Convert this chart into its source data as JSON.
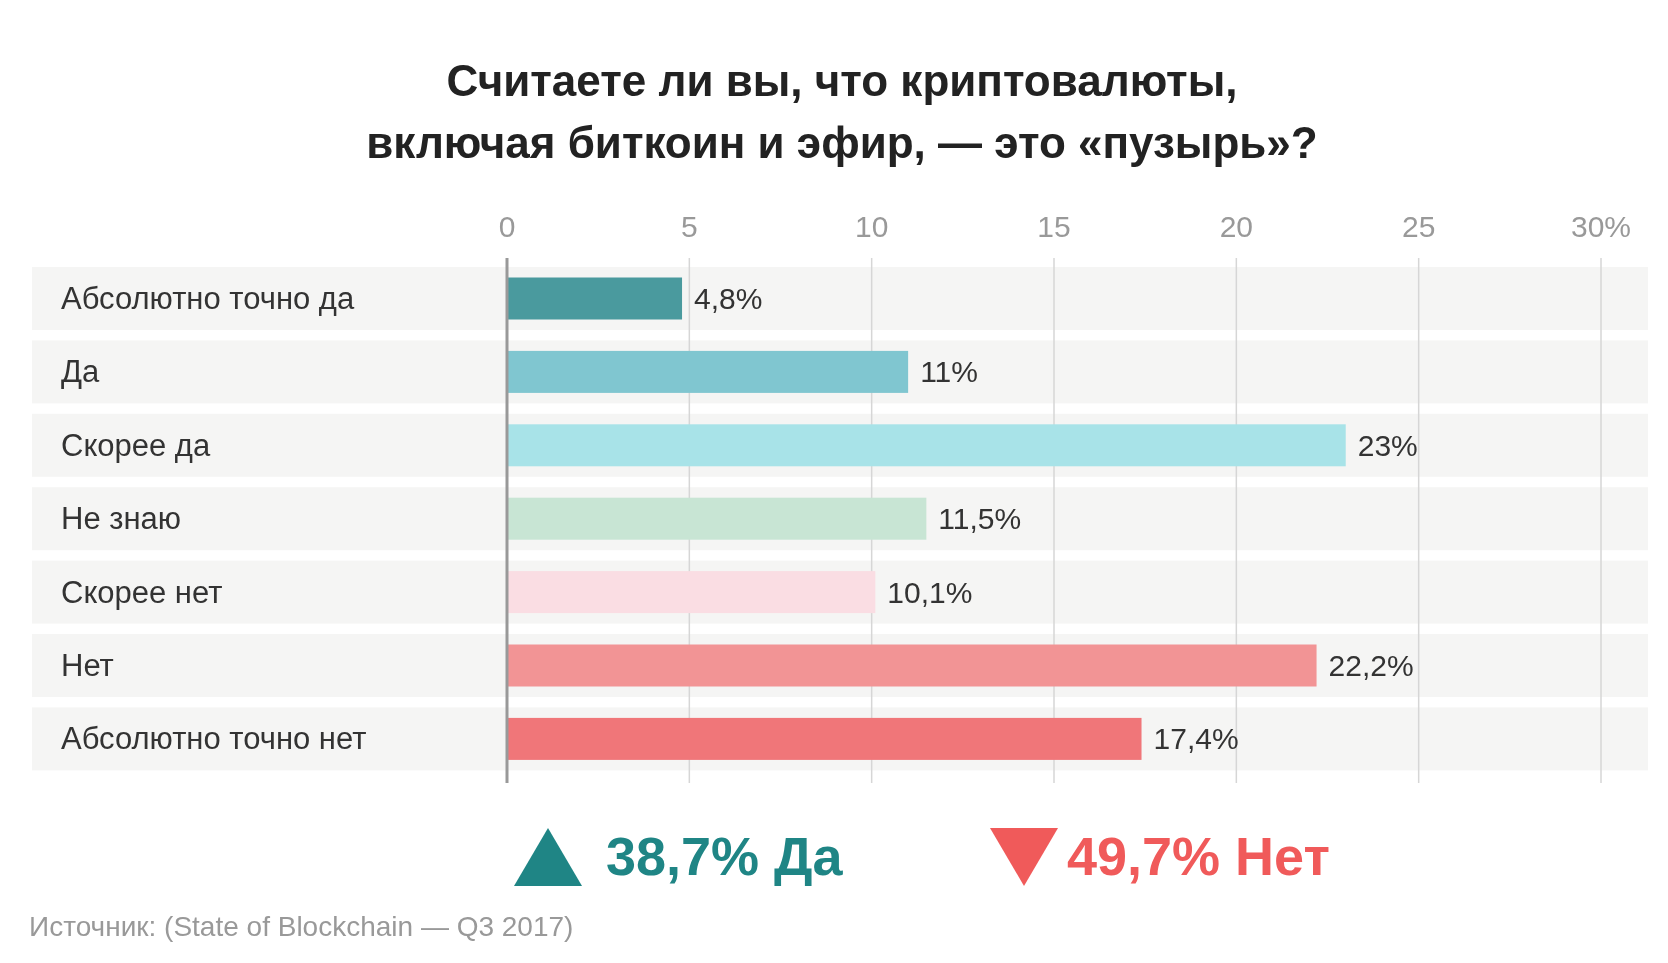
{
  "chart_data": {
    "type": "bar",
    "orientation": "horizontal",
    "title": "Считаете ли вы, что криптовалюты,\nвключая биткоин и эфир, — это «пузырь»?",
    "categories": [
      "Абсолютно точно да",
      "Да",
      "Скорее да",
      "Не знаю",
      "Скорее нет",
      "Нет",
      "Абсолютно точно нет"
    ],
    "values": [
      4.8,
      11,
      23,
      11.5,
      10.1,
      22.2,
      17.4
    ],
    "colors": [
      "#4a9a9e",
      "#80c6d0",
      "#a8e3e8",
      "#c8e5d4",
      "#fadde3",
      "#f29495",
      "#f07679"
    ],
    "value_labels": [
      "4,8%",
      "11%",
      "23%",
      "11,5%",
      "10,1%",
      "22,2%",
      "17,4%"
    ],
    "xlim": [
      0,
      30
    ],
    "xticks": [
      0,
      5,
      10,
      15,
      20,
      25,
      {
        "value": 30,
        "label": "30%"
      }
    ],
    "grid": "x",
    "bands": [
      {
        "axis": "y",
        "from": "Абсолютно точно да",
        "to": "Абсолютно точно да",
        "color": "#f5f5f4"
      },
      {
        "axis": "y",
        "from": "Да",
        "to": "Да",
        "color": "#f5f5f4"
      },
      {
        "axis": "y",
        "from": "Скорее да",
        "to": "Скорее да",
        "color": "#f5f5f4"
      },
      {
        "axis": "y",
        "from": "Не знаю",
        "to": "Не знаю",
        "color": "#f5f5f4"
      },
      {
        "axis": "y",
        "from": "Скорее нет",
        "to": "Скорее нет",
        "color": "#f5f5f4"
      },
      {
        "axis": "y",
        "from": "Нет",
        "to": "Нет",
        "color": "#f5f5f4"
      },
      {
        "axis": "y",
        "from": "Абсолютно точно нет",
        "to": "Абсолютно точно нет",
        "color": "#f5f5f4"
      }
    ],
    "annotations": [
      "38,7% Да",
      "49,7% Нет",
      "Источник: (State of Blockchain — Q3 2017)"
    ]
  }
}
